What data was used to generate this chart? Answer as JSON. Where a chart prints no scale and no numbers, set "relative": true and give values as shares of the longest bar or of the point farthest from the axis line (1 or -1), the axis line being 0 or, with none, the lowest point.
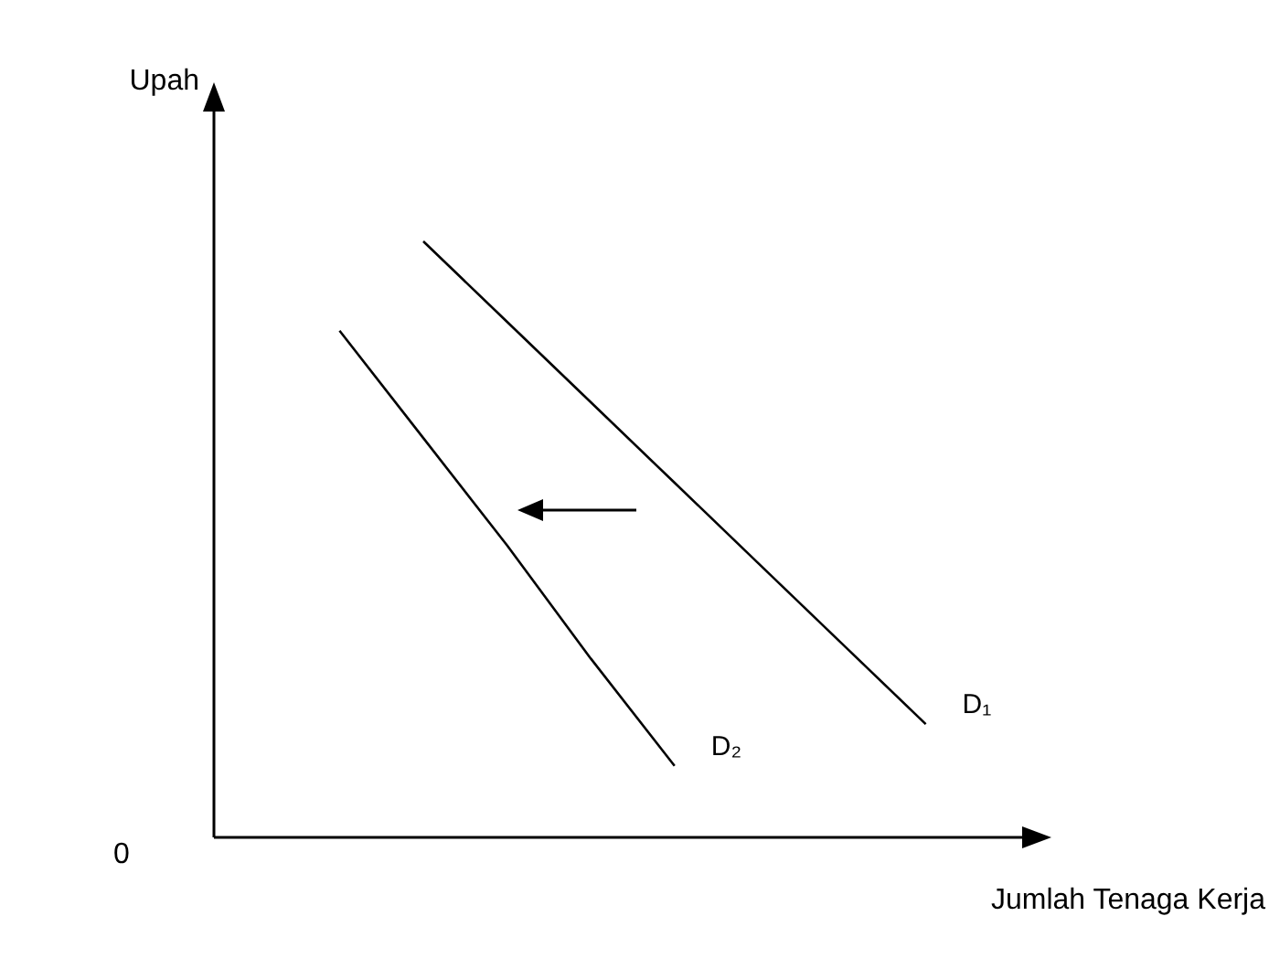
{
  "chart_data": {
    "type": "line",
    "relative": true,
    "xlabel": "Jumlah Tenaga Kerja",
    "ylabel": "Upah",
    "annotations": [
      "0"
    ],
    "categories": [
      null,
      null,
      null,
      null,
      null,
      null,
      null,
      null,
      null,
      null
    ],
    "marker": "none",
    "series": [
      {
        "name": "D₁",
        "color": "#000000",
        "values": [
          null,
          null,
          1,
          0.865,
          0.73,
          0.595,
          0.46,
          0.325,
          0.19,
          null
        ]
      },
      {
        "name": "D₂",
        "color": "#000000",
        "values": [
          null,
          0.85,
          0.67,
          0.49,
          0.3,
          0.12,
          null,
          null,
          null,
          null
        ]
      }
    ]
  }
}
